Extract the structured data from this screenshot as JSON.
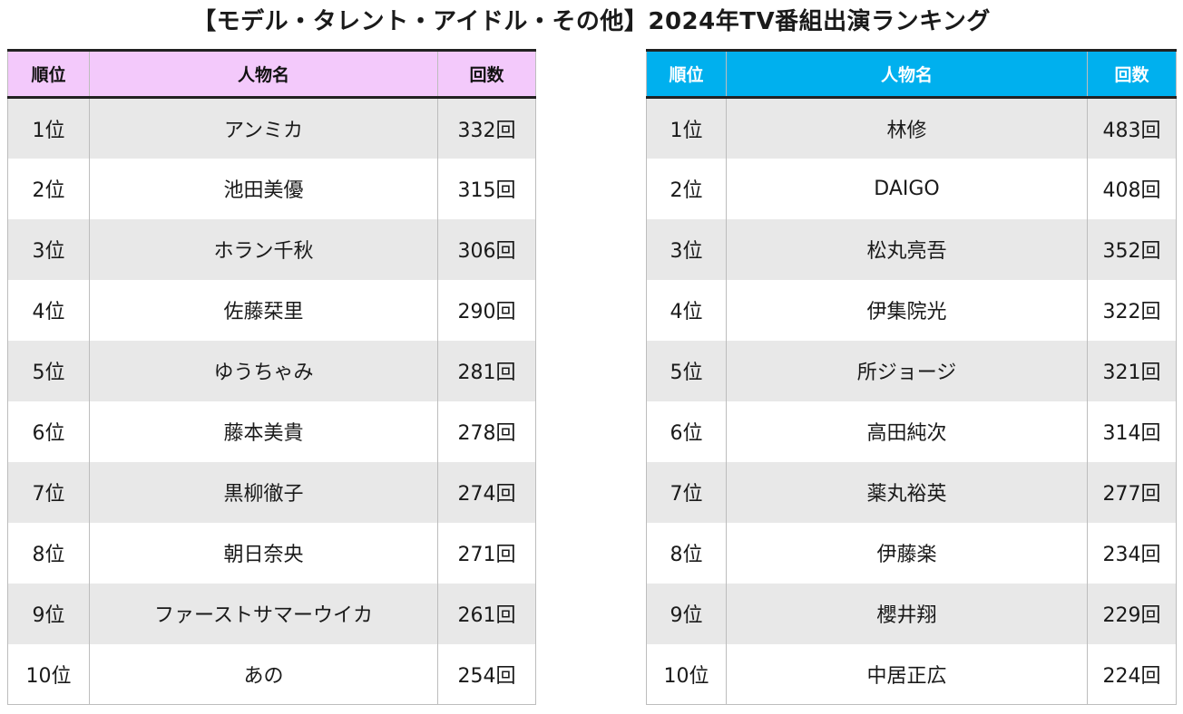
{
  "title": "【モデル・タレント・アイドル・その他】2024年TV番組出演ランキング",
  "left_table": {
    "headers": {
      "rank": "順位",
      "name": "人物名",
      "count": "回数"
    },
    "rows": [
      {
        "rank": "1位",
        "name": "アンミカ",
        "count": "332回"
      },
      {
        "rank": "2位",
        "name": "池田美優",
        "count": "315回"
      },
      {
        "rank": "3位",
        "name": "ホラン千秋",
        "count": "306回"
      },
      {
        "rank": "4位",
        "name": "佐藤栞里",
        "count": "290回"
      },
      {
        "rank": "5位",
        "name": "ゆうちゃみ",
        "count": "281回"
      },
      {
        "rank": "6位",
        "name": "藤本美貴",
        "count": "278回"
      },
      {
        "rank": "7位",
        "name": "黒柳徹子",
        "count": "274回"
      },
      {
        "rank": "8位",
        "name": "朝日奈央",
        "count": "271回"
      },
      {
        "rank": "9位",
        "name": "ファーストサマーウイカ",
        "count": "261回"
      },
      {
        "rank": "10位",
        "name": "あの",
        "count": "254回"
      }
    ]
  },
  "right_table": {
    "headers": {
      "rank": "順位",
      "name": "人物名",
      "count": "回数"
    },
    "rows": [
      {
        "rank": "1位",
        "name": "林修",
        "count": "483回"
      },
      {
        "rank": "2位",
        "name": "DAIGO",
        "count": "408回"
      },
      {
        "rank": "3位",
        "name": "松丸亮吾",
        "count": "352回"
      },
      {
        "rank": "4位",
        "name": "伊集院光",
        "count": "322回"
      },
      {
        "rank": "5位",
        "name": "所ジョージ",
        "count": "321回"
      },
      {
        "rank": "6位",
        "name": "高田純次",
        "count": "314回"
      },
      {
        "rank": "7位",
        "name": "薬丸裕英",
        "count": "277回"
      },
      {
        "rank": "8位",
        "name": "伊藤楽",
        "count": "234回"
      },
      {
        "rank": "9位",
        "name": "櫻井翔",
        "count": "229回"
      },
      {
        "rank": "10位",
        "name": "中居正広",
        "count": "224回"
      }
    ]
  },
  "colors": {
    "left_header_bg": "#f3c9fb",
    "right_header_bg": "#00b0ee",
    "stripe": "#e8e8e8"
  }
}
